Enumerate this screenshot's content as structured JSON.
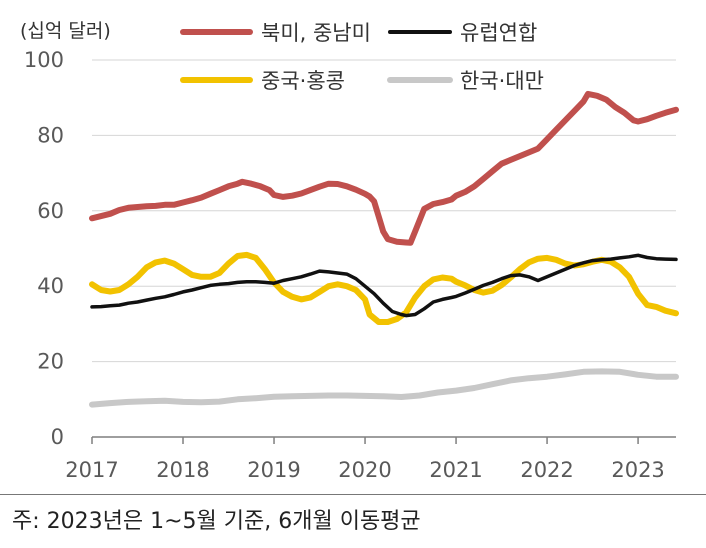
{
  "chart_data": {
    "type": "line",
    "unit_label": "(십억 달러)",
    "ylim": [
      0,
      100
    ],
    "yticks": [
      0,
      20,
      40,
      60,
      80,
      100
    ],
    "xlim": [
      2017.0,
      2023.4167
    ],
    "xticks": [
      "2017",
      "2018",
      "2019",
      "2020",
      "2021",
      "2022",
      "2023"
    ],
    "grid": "horizontal",
    "legend_position": "top",
    "note": "주: 2023년은 1~5월 기준, 6개월 이동평균",
    "series": [
      {
        "name": "북미, 중남미",
        "color": "#c0504d",
        "points": [
          [
            2017.0,
            58
          ],
          [
            2017.1,
            58.6
          ],
          [
            2017.2,
            59.2
          ],
          [
            2017.3,
            60.2
          ],
          [
            2017.4,
            60.8
          ],
          [
            2017.5,
            61
          ],
          [
            2017.6,
            61.2
          ],
          [
            2017.7,
            61.3
          ],
          [
            2017.8,
            61.6
          ],
          [
            2017.9,
            61.6
          ],
          [
            2018.0,
            62.2
          ],
          [
            2018.1,
            62.8
          ],
          [
            2018.2,
            63.5
          ],
          [
            2018.3,
            64.5
          ],
          [
            2018.4,
            65.5
          ],
          [
            2018.5,
            66.5
          ],
          [
            2018.6,
            67.2
          ],
          [
            2018.65,
            67.7
          ],
          [
            2018.75,
            67.2
          ],
          [
            2018.85,
            66.5
          ],
          [
            2018.95,
            65.5
          ],
          [
            2019.0,
            64.2
          ],
          [
            2019.1,
            63.7
          ],
          [
            2019.2,
            64
          ],
          [
            2019.3,
            64.6
          ],
          [
            2019.4,
            65.5
          ],
          [
            2019.5,
            66.4
          ],
          [
            2019.6,
            67.2
          ],
          [
            2019.7,
            67.1
          ],
          [
            2019.8,
            66.5
          ],
          [
            2019.9,
            65.6
          ],
          [
            2020.0,
            64.5
          ],
          [
            2020.05,
            63.8
          ],
          [
            2020.1,
            62.5
          ],
          [
            2020.15,
            58.5
          ],
          [
            2020.2,
            54.5
          ],
          [
            2020.25,
            52.5
          ],
          [
            2020.35,
            51.8
          ],
          [
            2020.45,
            51.6
          ],
          [
            2020.5,
            51.5
          ],
          [
            2020.55,
            54.5
          ],
          [
            2020.65,
            60.5
          ],
          [
            2020.75,
            61.8
          ],
          [
            2020.85,
            62.3
          ],
          [
            2020.95,
            63
          ],
          [
            2021.0,
            64
          ],
          [
            2021.1,
            65
          ],
          [
            2021.2,
            66.5
          ],
          [
            2021.3,
            68.5
          ],
          [
            2021.4,
            70.5
          ],
          [
            2021.5,
            72.5
          ],
          [
            2021.6,
            73.5
          ],
          [
            2021.7,
            74.5
          ],
          [
            2021.8,
            75.5
          ],
          [
            2021.9,
            76.5
          ],
          [
            2022.0,
            79
          ],
          [
            2022.1,
            81.5
          ],
          [
            2022.2,
            84
          ],
          [
            2022.3,
            86.5
          ],
          [
            2022.4,
            89
          ],
          [
            2022.45,
            91
          ],
          [
            2022.55,
            90.5
          ],
          [
            2022.65,
            89.5
          ],
          [
            2022.75,
            87.5
          ],
          [
            2022.85,
            86
          ],
          [
            2022.95,
            84
          ],
          [
            2023.0,
            83.7
          ],
          [
            2023.1,
            84.3
          ],
          [
            2023.2,
            85.2
          ],
          [
            2023.3,
            86
          ],
          [
            2023.4167,
            86.8
          ]
        ]
      },
      {
        "name": "유럽연합",
        "color": "#111111",
        "points": [
          [
            2017.0,
            34.5
          ],
          [
            2017.1,
            34.6
          ],
          [
            2017.2,
            34.8
          ],
          [
            2017.3,
            35
          ],
          [
            2017.4,
            35.5
          ],
          [
            2017.5,
            35.8
          ],
          [
            2017.6,
            36.3
          ],
          [
            2017.7,
            36.8
          ],
          [
            2017.8,
            37.2
          ],
          [
            2017.9,
            37.8
          ],
          [
            2018.0,
            38.5
          ],
          [
            2018.1,
            39
          ],
          [
            2018.2,
            39.6
          ],
          [
            2018.3,
            40.2
          ],
          [
            2018.4,
            40.5
          ],
          [
            2018.5,
            40.7
          ],
          [
            2018.6,
            41
          ],
          [
            2018.7,
            41.2
          ],
          [
            2018.8,
            41.2
          ],
          [
            2018.9,
            41
          ],
          [
            2019.0,
            40.8
          ],
          [
            2019.1,
            41.5
          ],
          [
            2019.2,
            42
          ],
          [
            2019.3,
            42.5
          ],
          [
            2019.4,
            43.2
          ],
          [
            2019.5,
            44
          ],
          [
            2019.6,
            43.8
          ],
          [
            2019.7,
            43.5
          ],
          [
            2019.8,
            43.2
          ],
          [
            2019.9,
            42
          ],
          [
            2020.0,
            40
          ],
          [
            2020.1,
            38
          ],
          [
            2020.2,
            35.5
          ],
          [
            2020.3,
            33.3
          ],
          [
            2020.4,
            32.5
          ],
          [
            2020.45,
            32.2
          ],
          [
            2020.55,
            32.5
          ],
          [
            2020.65,
            34
          ],
          [
            2020.75,
            35.8
          ],
          [
            2020.85,
            36.5
          ],
          [
            2020.95,
            37
          ],
          [
            2021.0,
            37.3
          ],
          [
            2021.1,
            38.2
          ],
          [
            2021.2,
            39.2
          ],
          [
            2021.3,
            40.2
          ],
          [
            2021.4,
            41
          ],
          [
            2021.5,
            42
          ],
          [
            2021.6,
            42.8
          ],
          [
            2021.7,
            43
          ],
          [
            2021.8,
            42.5
          ],
          [
            2021.9,
            41.5
          ],
          [
            2022.0,
            42.5
          ],
          [
            2022.1,
            43.5
          ],
          [
            2022.2,
            44.5
          ],
          [
            2022.3,
            45.5
          ],
          [
            2022.4,
            46.2
          ],
          [
            2022.5,
            46.8
          ],
          [
            2022.6,
            47
          ],
          [
            2022.7,
            47.2
          ],
          [
            2022.8,
            47.5
          ],
          [
            2022.9,
            47.8
          ],
          [
            2023.0,
            48.2
          ],
          [
            2023.1,
            47.6
          ],
          [
            2023.2,
            47.3
          ],
          [
            2023.3,
            47.2
          ],
          [
            2023.4167,
            47.1
          ]
        ]
      },
      {
        "name": "중국·홍콩",
        "color": "#f2c200",
        "points": [
          [
            2017.0,
            40.5
          ],
          [
            2017.1,
            39
          ],
          [
            2017.2,
            38.6
          ],
          [
            2017.3,
            39
          ],
          [
            2017.4,
            40.5
          ],
          [
            2017.5,
            42.5
          ],
          [
            2017.6,
            45
          ],
          [
            2017.7,
            46.3
          ],
          [
            2017.8,
            46.8
          ],
          [
            2017.9,
            46
          ],
          [
            2018.0,
            44.5
          ],
          [
            2018.1,
            43
          ],
          [
            2018.2,
            42.5
          ],
          [
            2018.3,
            42.5
          ],
          [
            2018.4,
            43.5
          ],
          [
            2018.5,
            46
          ],
          [
            2018.6,
            48
          ],
          [
            2018.7,
            48.3
          ],
          [
            2018.8,
            47.5
          ],
          [
            2018.9,
            44.5
          ],
          [
            2019.0,
            41
          ],
          [
            2019.1,
            38.5
          ],
          [
            2019.2,
            37.2
          ],
          [
            2019.3,
            36.5
          ],
          [
            2019.4,
            37
          ],
          [
            2019.5,
            38.5
          ],
          [
            2019.6,
            40
          ],
          [
            2019.7,
            40.5
          ],
          [
            2019.8,
            40
          ],
          [
            2019.9,
            39
          ],
          [
            2020.0,
            36.5
          ],
          [
            2020.05,
            32.5
          ],
          [
            2020.15,
            30.5
          ],
          [
            2020.25,
            30.5
          ],
          [
            2020.35,
            31.3
          ],
          [
            2020.45,
            33
          ],
          [
            2020.55,
            37
          ],
          [
            2020.65,
            40
          ],
          [
            2020.75,
            41.8
          ],
          [
            2020.85,
            42.3
          ],
          [
            2020.95,
            42
          ],
          [
            2021.0,
            41.2
          ],
          [
            2021.1,
            40.2
          ],
          [
            2021.2,
            39
          ],
          [
            2021.3,
            38.3
          ],
          [
            2021.4,
            38.8
          ],
          [
            2021.5,
            40.3
          ],
          [
            2021.6,
            42.3
          ],
          [
            2021.7,
            44.5
          ],
          [
            2021.8,
            46.3
          ],
          [
            2021.9,
            47.3
          ],
          [
            2022.0,
            47.5
          ],
          [
            2022.1,
            47
          ],
          [
            2022.2,
            46
          ],
          [
            2022.3,
            45.5
          ],
          [
            2022.4,
            45.8
          ],
          [
            2022.5,
            46.5
          ],
          [
            2022.6,
            47
          ],
          [
            2022.7,
            46.5
          ],
          [
            2022.8,
            45
          ],
          [
            2022.9,
            42.5
          ],
          [
            2023.0,
            38
          ],
          [
            2023.1,
            35
          ],
          [
            2023.2,
            34.5
          ],
          [
            2023.3,
            33.5
          ],
          [
            2023.4167,
            32.8
          ]
        ]
      },
      {
        "name": "한국·대만",
        "color": "#c8c8c8",
        "points": [
          [
            2017.0,
            8.6
          ],
          [
            2017.2,
            9
          ],
          [
            2017.4,
            9.3
          ],
          [
            2017.6,
            9.5
          ],
          [
            2017.8,
            9.6
          ],
          [
            2018.0,
            9.3
          ],
          [
            2018.2,
            9.2
          ],
          [
            2018.4,
            9.4
          ],
          [
            2018.6,
            10
          ],
          [
            2018.8,
            10.3
          ],
          [
            2019.0,
            10.7
          ],
          [
            2019.2,
            10.8
          ],
          [
            2019.4,
            10.9
          ],
          [
            2019.6,
            11
          ],
          [
            2019.8,
            11
          ],
          [
            2020.0,
            10.9
          ],
          [
            2020.2,
            10.8
          ],
          [
            2020.4,
            10.6
          ],
          [
            2020.6,
            11
          ],
          [
            2020.8,
            11.8
          ],
          [
            2021.0,
            12.3
          ],
          [
            2021.2,
            13
          ],
          [
            2021.4,
            14
          ],
          [
            2021.6,
            15
          ],
          [
            2021.8,
            15.6
          ],
          [
            2022.0,
            16
          ],
          [
            2022.2,
            16.6
          ],
          [
            2022.4,
            17.3
          ],
          [
            2022.6,
            17.4
          ],
          [
            2022.8,
            17.3
          ],
          [
            2023.0,
            16.5
          ],
          [
            2023.2,
            16
          ],
          [
            2023.4167,
            16
          ]
        ]
      }
    ]
  }
}
